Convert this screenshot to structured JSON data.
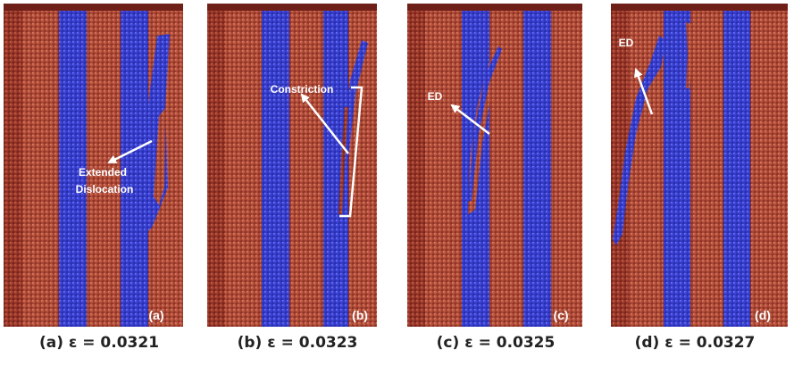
{
  "colors": {
    "background": "#ffffff",
    "atoms_red": "#8e2f24",
    "atoms_red_light": "#b5503d",
    "atoms_blue": "#3238c9",
    "atoms_blue_light": "#5a63f0",
    "label_white": "#ffffff"
  },
  "panels": [
    {
      "tag": "(a)",
      "caption": "(a) ε = 0.0321",
      "annotations": [
        {
          "line1": "Extended",
          "line2": "Dislocation"
        }
      ]
    },
    {
      "tag": "(b)",
      "caption": "(b) ε = 0.0323",
      "annotations": [
        {
          "line1": "Constriction",
          "line2": ""
        }
      ]
    },
    {
      "tag": "(c)",
      "caption": "(c)  ε = 0.0325",
      "annotations": [
        {
          "line1": "ED",
          "line2": ""
        }
      ]
    },
    {
      "tag": "(d)",
      "caption": "(d) ε = 0.0327",
      "annotations": [
        {
          "line1": "ED",
          "line2": ""
        }
      ]
    }
  ]
}
